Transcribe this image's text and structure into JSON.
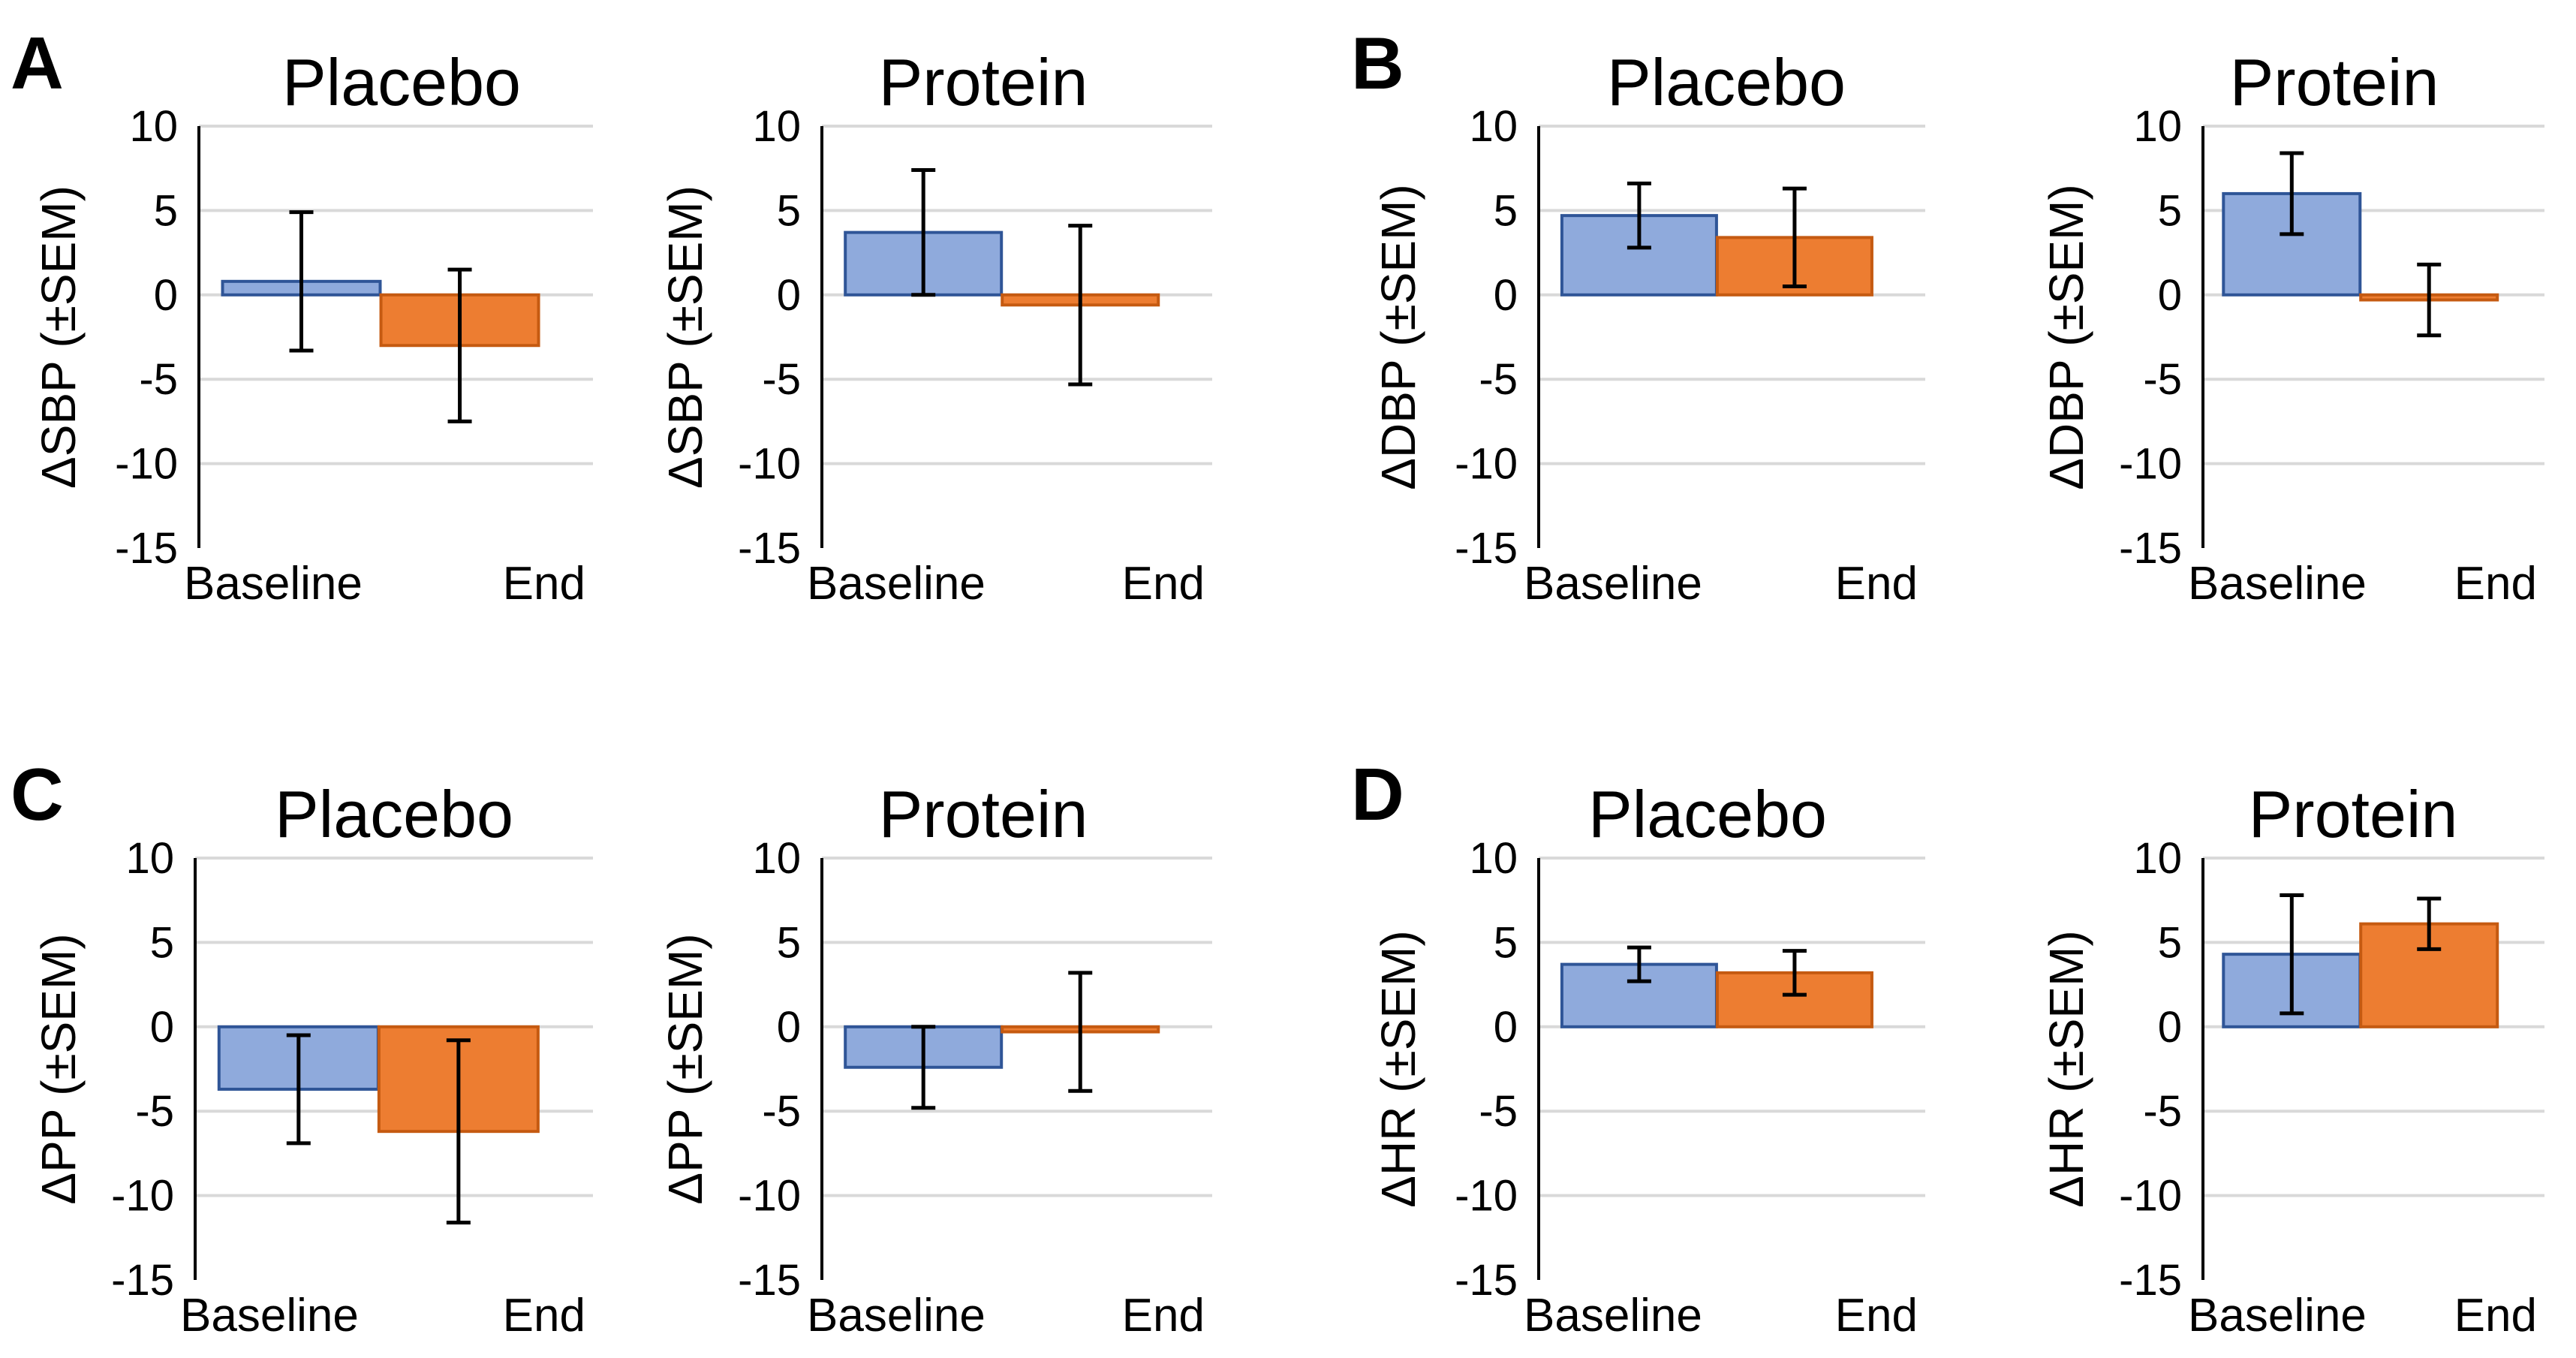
{
  "colors": {
    "baseline_fill": "#8faadc",
    "baseline_stroke": "#2f5597",
    "end_fill": "#ed7d31",
    "end_stroke": "#c55a11",
    "grid": "#d9d9d9"
  },
  "panels": [
    {
      "letter": "A"
    },
    {
      "letter": "B"
    },
    {
      "letter": "C"
    },
    {
      "letter": "D"
    }
  ],
  "chart_data": [
    {
      "type": "bar",
      "panel": "A",
      "title": "Placebo",
      "ylabel": "ΔSBP (±SEM)",
      "categories": [
        "Baseline",
        "End"
      ],
      "values": [
        0.8,
        -3.0
      ],
      "errors": [
        4.1,
        4.5
      ],
      "ylim": [
        -15,
        10
      ],
      "yticks": [
        10,
        5,
        0,
        -5,
        -10,
        -15
      ]
    },
    {
      "type": "bar",
      "panel": "A",
      "title": "Protein",
      "ylabel": "ΔSBP (±SEM)",
      "categories": [
        "Baseline",
        "End"
      ],
      "values": [
        3.7,
        -0.6
      ],
      "errors": [
        3.7,
        4.7
      ],
      "ylim": [
        -15,
        10
      ],
      "yticks": [
        10,
        5,
        0,
        -5,
        -10,
        -15
      ]
    },
    {
      "type": "bar",
      "panel": "B",
      "title": "Placebo",
      "ylabel": "ΔDBP (±SEM)",
      "categories": [
        "Baseline",
        "End"
      ],
      "values": [
        4.7,
        3.4
      ],
      "errors": [
        1.9,
        2.9
      ],
      "ylim": [
        -15,
        10
      ],
      "yticks": [
        10,
        5,
        0,
        -5,
        -10,
        -15
      ]
    },
    {
      "type": "bar",
      "panel": "B",
      "title": "Protein",
      "ylabel": "ΔDBP (±SEM)",
      "categories": [
        "Baseline",
        "End"
      ],
      "values": [
        6.0,
        -0.3
      ],
      "errors": [
        2.4,
        2.1
      ],
      "ylim": [
        -15,
        10
      ],
      "yticks": [
        10,
        5,
        0,
        -5,
        -10,
        -15
      ]
    },
    {
      "type": "bar",
      "panel": "C",
      "title": "Placebo",
      "ylabel": "ΔPP (±SEM)",
      "categories": [
        "Baseline",
        "End"
      ],
      "values": [
        -3.7,
        -6.2
      ],
      "errors": [
        3.2,
        5.4
      ],
      "ylim": [
        -15,
        10
      ],
      "yticks": [
        10,
        5,
        0,
        -5,
        -10,
        -15
      ]
    },
    {
      "type": "bar",
      "panel": "C",
      "title": "Protein",
      "ylabel": "ΔPP (±SEM)",
      "categories": [
        "Baseline",
        "End"
      ],
      "values": [
        -2.4,
        -0.3
      ],
      "errors": [
        2.4,
        3.5
      ],
      "ylim": [
        -15,
        10
      ],
      "yticks": [
        10,
        5,
        0,
        -5,
        -10,
        -15
      ]
    },
    {
      "type": "bar",
      "panel": "D",
      "title": "Placebo",
      "ylabel": "ΔHR (±SEM)",
      "categories": [
        "Baseline",
        "End"
      ],
      "values": [
        3.7,
        3.2
      ],
      "errors": [
        1.0,
        1.3
      ],
      "ylim": [
        -15,
        10
      ],
      "yticks": [
        10,
        5,
        0,
        -5,
        -10,
        -15
      ]
    },
    {
      "type": "bar",
      "panel": "D",
      "title": "Protein",
      "ylabel": "ΔHR (±SEM)",
      "categories": [
        "Baseline",
        "End"
      ],
      "values": [
        4.3,
        6.1
      ],
      "errors": [
        3.5,
        1.5
      ],
      "ylim": [
        -15,
        10
      ],
      "yticks": [
        10,
        5,
        0,
        -5,
        -10,
        -15
      ]
    }
  ]
}
